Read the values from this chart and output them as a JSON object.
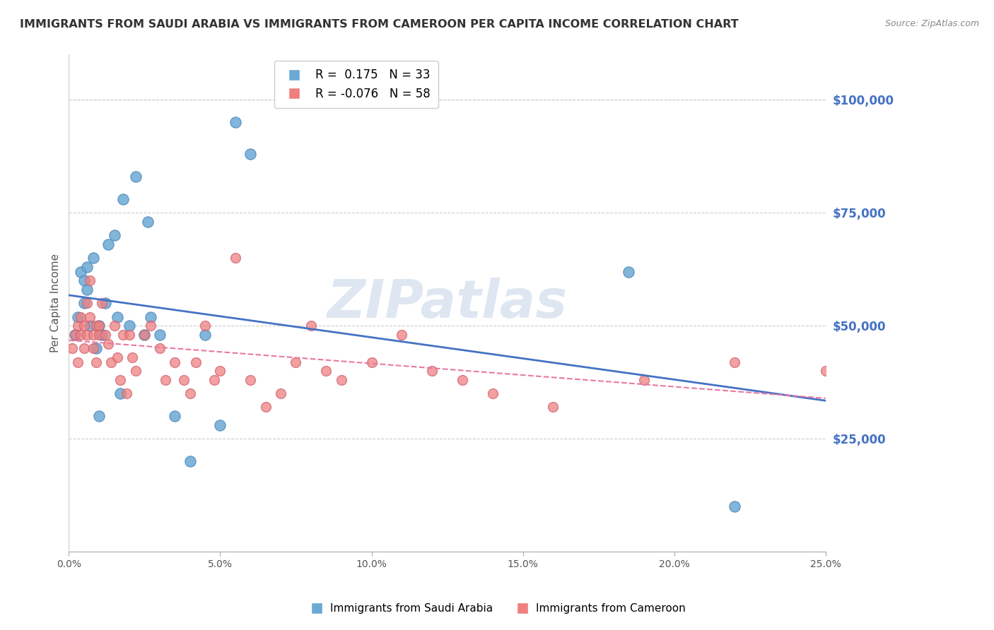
{
  "title": "IMMIGRANTS FROM SAUDI ARABIA VS IMMIGRANTS FROM CAMEROON PER CAPITA INCOME CORRELATION CHART",
  "source": "Source: ZipAtlas.com",
  "ylabel": "Per Capita Income",
  "ytick_values": [
    25000,
    50000,
    75000,
    100000
  ],
  "ytick_labels": [
    "$25,000",
    "$50,000",
    "$75,000",
    "$100,000"
  ],
  "ymax": 110000,
  "ymin": 0,
  "xmin": 0.0,
  "xmax": 0.25,
  "blue_color": "#6ca8d4",
  "pink_color": "#f08080",
  "blue_edge": "#5590c0",
  "pink_edge": "#d06070",
  "trend_blue_color": "#4472c4",
  "trend_pink_color": "#e878a0",
  "watermark": "ZIPatlas",
  "watermark_color": "#c8d8e8",
  "grid_color": "#cccccc",
  "yaxis_label_color": "#4472c4",
  "title_color": "#333333",
  "R_blue": 0.175,
  "N_blue": 33,
  "R_pink": -0.076,
  "N_pink": 58,
  "saudi_x": [
    0.002,
    0.003,
    0.004,
    0.005,
    0.005,
    0.006,
    0.006,
    0.007,
    0.008,
    0.009,
    0.01,
    0.01,
    0.011,
    0.012,
    0.013,
    0.015,
    0.016,
    0.017,
    0.018,
    0.02,
    0.022,
    0.025,
    0.026,
    0.027,
    0.03,
    0.035,
    0.04,
    0.045,
    0.05,
    0.055,
    0.06,
    0.185,
    0.22
  ],
  "saudi_y": [
    48000,
    52000,
    62000,
    55000,
    60000,
    63000,
    58000,
    50000,
    65000,
    45000,
    50000,
    30000,
    48000,
    55000,
    68000,
    70000,
    52000,
    35000,
    78000,
    50000,
    83000,
    48000,
    73000,
    52000,
    48000,
    30000,
    20000,
    48000,
    28000,
    95000,
    88000,
    62000,
    10000
  ],
  "cameroon_x": [
    0.001,
    0.002,
    0.003,
    0.003,
    0.004,
    0.004,
    0.005,
    0.005,
    0.006,
    0.006,
    0.007,
    0.007,
    0.008,
    0.008,
    0.009,
    0.009,
    0.01,
    0.01,
    0.011,
    0.012,
    0.013,
    0.014,
    0.015,
    0.016,
    0.017,
    0.018,
    0.019,
    0.02,
    0.021,
    0.022,
    0.025,
    0.027,
    0.03,
    0.032,
    0.035,
    0.038,
    0.04,
    0.042,
    0.045,
    0.048,
    0.05,
    0.055,
    0.06,
    0.065,
    0.07,
    0.075,
    0.08,
    0.085,
    0.09,
    0.1,
    0.11,
    0.12,
    0.13,
    0.14,
    0.16,
    0.19,
    0.22,
    0.25
  ],
  "cameroon_y": [
    45000,
    48000,
    42000,
    50000,
    48000,
    52000,
    45000,
    50000,
    55000,
    48000,
    60000,
    52000,
    48000,
    45000,
    50000,
    42000,
    50000,
    48000,
    55000,
    48000,
    46000,
    42000,
    50000,
    43000,
    38000,
    48000,
    35000,
    48000,
    43000,
    40000,
    48000,
    50000,
    45000,
    38000,
    42000,
    38000,
    35000,
    42000,
    50000,
    38000,
    40000,
    65000,
    38000,
    32000,
    35000,
    42000,
    50000,
    40000,
    38000,
    42000,
    48000,
    40000,
    38000,
    35000,
    32000,
    38000,
    42000,
    40000
  ]
}
